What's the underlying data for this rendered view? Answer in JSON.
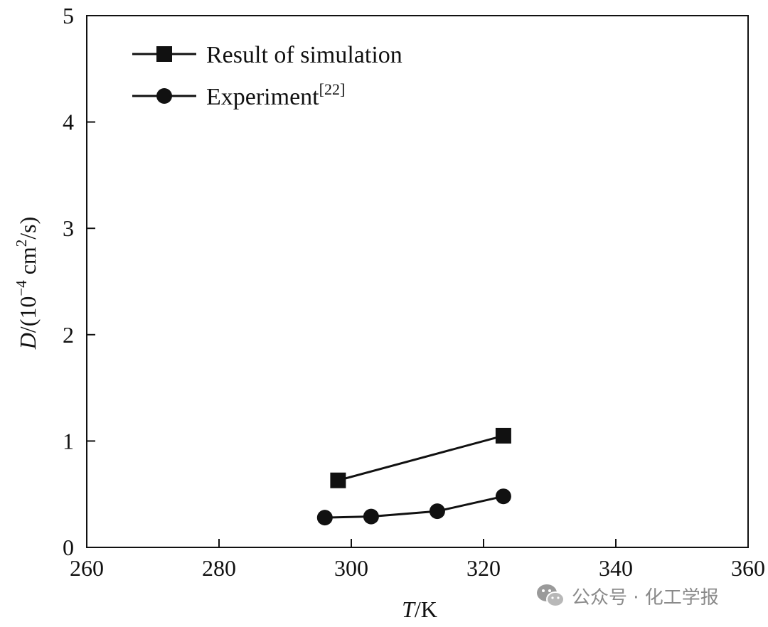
{
  "chart_data": {
    "type": "line",
    "xlabel_var": "T",
    "xlabel_unit": "/K",
    "ylabel_var": "D",
    "ylabel_prefix": "/(10",
    "ylabel_exp": "−4",
    "ylabel_mid": " cm",
    "ylabel_exp2": "2",
    "ylabel_suffix": "/s)",
    "xlim": [
      260,
      360
    ],
    "ylim": [
      0,
      5
    ],
    "xticks": [
      "260",
      "280",
      "300",
      "320",
      "340",
      "360"
    ],
    "yticks": [
      "0",
      "1",
      "2",
      "3",
      "4",
      "5"
    ],
    "grid": false,
    "legend_position": "top-left",
    "series": [
      {
        "name": "Result of simulation",
        "marker": "square",
        "x": [
          298,
          323
        ],
        "y": [
          0.63,
          1.05
        ]
      },
      {
        "name": "Experiment",
        "name_superscript": "[22]",
        "marker": "circle",
        "x": [
          296,
          303,
          313,
          323
        ],
        "y": [
          0.28,
          0.29,
          0.34,
          0.48
        ]
      }
    ]
  },
  "watermark": {
    "icon": "wechat-icon",
    "text": "公众号 · 化工学报"
  }
}
